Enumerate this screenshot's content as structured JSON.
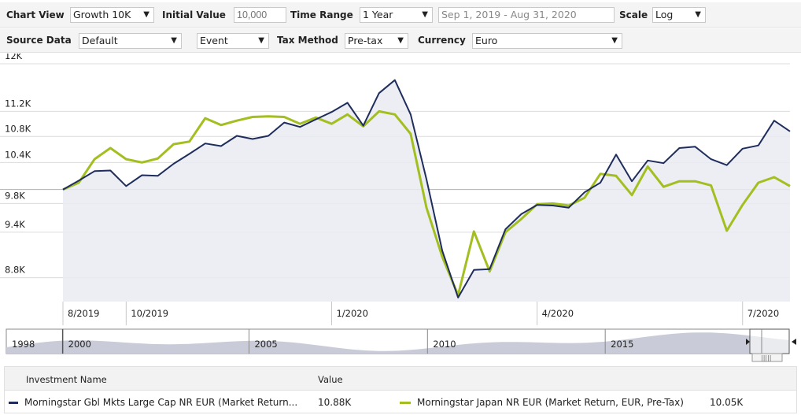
{
  "toolbar": {
    "chart_view": {
      "label": "Chart View",
      "value": "Growth 10K"
    },
    "initial_value": {
      "label": "Initial Value",
      "placeholder": "10,000"
    },
    "time_range": {
      "label": "Time Range",
      "value": "1 Year",
      "dates": "Sep 1, 2019 - Aug 31, 2020"
    },
    "scale": {
      "label": "Scale",
      "value": "Log"
    },
    "source_data": {
      "label": "Source Data",
      "value": "Default"
    },
    "event": {
      "value": "Event"
    },
    "tax_method": {
      "label": "Tax Method",
      "value": "Pre-tax"
    },
    "currency": {
      "label": "Currency",
      "value": "Euro"
    }
  },
  "chart_data": {
    "type": "line",
    "scale": "log",
    "ylim": [
      8500,
      12000
    ],
    "yticks": [
      {
        "value": 8800,
        "label": "8.8K"
      },
      {
        "value": 9400,
        "label": "9.4K"
      },
      {
        "value": 9800,
        "label": "9.8K"
      },
      {
        "value": 10400,
        "label": "10.4K"
      },
      {
        "value": 10800,
        "label": "10.8K"
      },
      {
        "value": 11200,
        "label": "11.2K"
      },
      {
        "value": 12000,
        "label": "12K"
      }
    ],
    "xticks": [
      {
        "index": 0,
        "label": "8/2019"
      },
      {
        "index": 4,
        "label": "10/2019"
      },
      {
        "index": 17,
        "label": "1/2020"
      },
      {
        "index": 30,
        "label": "4/2020"
      },
      {
        "index": 43,
        "label": "7/2020"
      }
    ],
    "grid": true,
    "series": [
      {
        "name": "Morningstar Gbl Mkts Large Cap NR EUR (Market Return...",
        "color": "#1f2d5c",
        "values": [
          10000,
          10130,
          10270,
          10280,
          10050,
          10210,
          10200,
          10380,
          10530,
          10690,
          10650,
          10810,
          10760,
          10810,
          11020,
          10950,
          11070,
          11190,
          11340,
          10970,
          11500,
          11720,
          11150,
          10150,
          9150,
          8550,
          8900,
          8910,
          9440,
          9650,
          9780,
          9770,
          9740,
          9960,
          10100,
          10520,
          10120,
          10430,
          10390,
          10620,
          10640,
          10450,
          10360,
          10610,
          10660,
          11050,
          10880
        ]
      },
      {
        "name": "Morningstar Japan NR EUR (Market Return, EUR, Pre-Tax)",
        "color": "#a3bf1f",
        "values": [
          10000,
          10100,
          10450,
          10620,
          10450,
          10400,
          10460,
          10680,
          10720,
          11090,
          10980,
          11050,
          11110,
          11120,
          11110,
          11000,
          11100,
          11000,
          11150,
          10960,
          11200,
          11150,
          10840,
          9740,
          9070,
          8580,
          9410,
          8880,
          9400,
          9580,
          9790,
          9800,
          9770,
          9880,
          10230,
          10200,
          9920,
          10340,
          10040,
          10120,
          10120,
          10060,
          9420,
          9780,
          10100,
          10180,
          10050
        ]
      }
    ]
  },
  "navigator": {
    "labels": [
      {
        "label": "1998",
        "pos": 0.0
      },
      {
        "label": "2000",
        "pos": 0.072
      },
      {
        "label": "2005",
        "pos": 0.31
      },
      {
        "label": "2010",
        "pos": 0.538
      },
      {
        "label": "2015",
        "pos": 0.765
      }
    ]
  },
  "table": {
    "headers": {
      "name": "Investment Name",
      "value": "Value"
    },
    "rows": [
      {
        "name": "Morningstar Gbl Mkts Large Cap NR EUR (Market Return...",
        "value": "10.88K",
        "color": "#1f2d5c"
      },
      {
        "name": "Morningstar Japan NR EUR (Market Return, EUR, Pre-Tax)",
        "value": "10.05K",
        "color": "#a3bf1f"
      }
    ]
  }
}
